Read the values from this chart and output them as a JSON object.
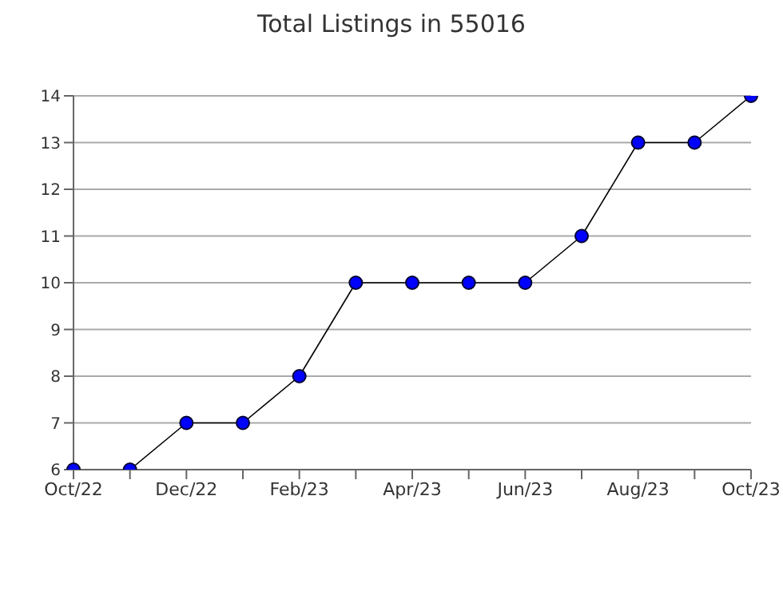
{
  "chart_data": {
    "type": "line",
    "title": "Total Listings in 55016",
    "categories": [
      "Oct/22",
      null,
      "Dec/22",
      null,
      "Feb/23",
      null,
      "Apr/23",
      null,
      "Jun/23",
      null,
      "Aug/23",
      null,
      "Oct/23"
    ],
    "series": [
      {
        "color": "#0000ff",
        "values": [
          6,
          6,
          7,
          7,
          8,
          10,
          10,
          10,
          10,
          11,
          13,
          13,
          14
        ]
      }
    ],
    "ylim": [
      6,
      14
    ],
    "yticks": [
      6,
      7,
      8,
      9,
      10,
      11,
      12,
      13,
      14
    ],
    "grid": "y",
    "marker": "circle",
    "line_style": "solid",
    "legend": false
  }
}
